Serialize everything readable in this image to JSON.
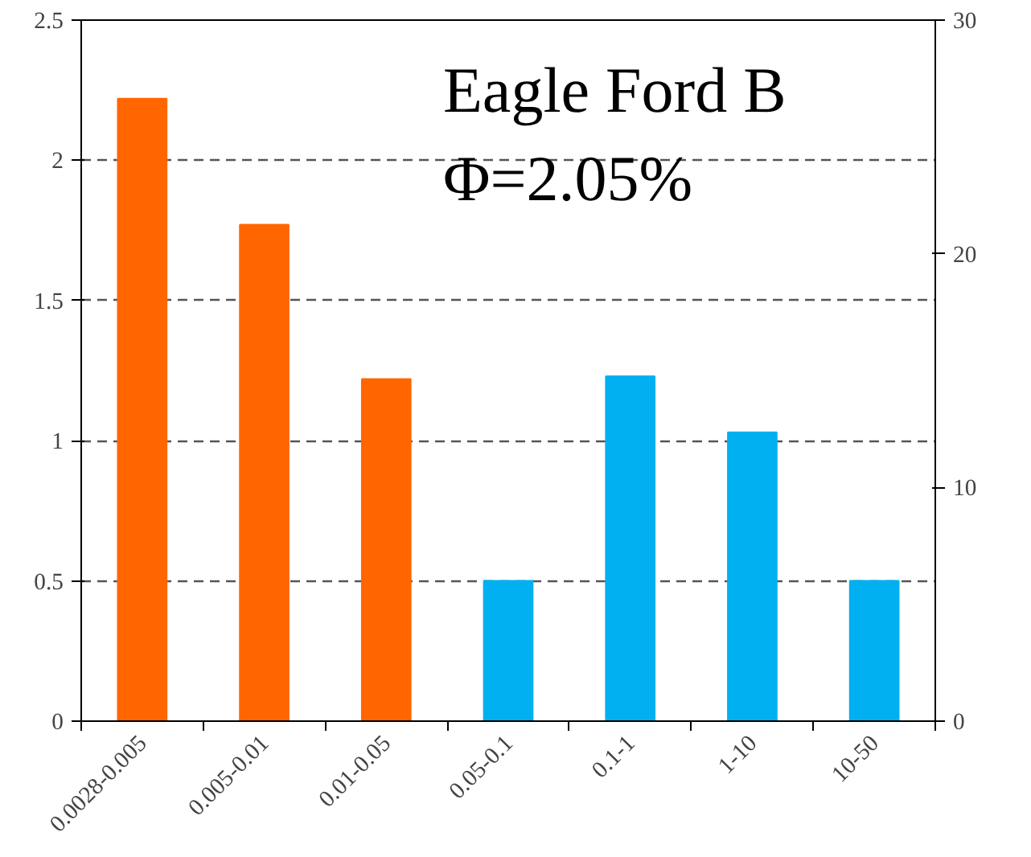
{
  "chart_data": {
    "type": "bar",
    "categories": [
      "0.0028-0.005",
      "0.005-0.01",
      "0.01-0.05",
      "0.05-0.1",
      "0.1-1",
      "1-10",
      "10-50"
    ],
    "values": [
      2.22,
      1.77,
      1.22,
      0.5,
      1.23,
      1.03,
      0.5
    ],
    "colors": [
      "#ff6600",
      "#ff6600",
      "#ff6600",
      "#00b0f0",
      "#00b0f0",
      "#00b0f0",
      "#00b0f0"
    ],
    "ylim": [
      0,
      2.5
    ],
    "yticks": [
      0,
      0.5,
      1,
      1.5,
      2,
      2.5
    ],
    "y2lim": [
      0,
      30
    ],
    "y2ticks": [
      0,
      10,
      20,
      30
    ],
    "grid": "y",
    "annotations": [
      "Eagle Ford B",
      "Φ=2.05%"
    ]
  }
}
